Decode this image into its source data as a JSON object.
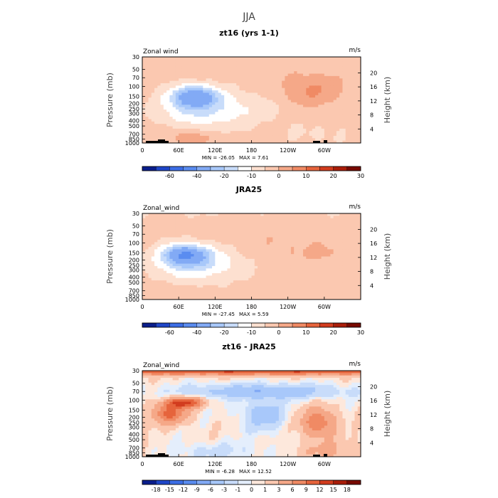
{
  "figure": {
    "title": "JJA"
  },
  "palettes": {
    "wind": [
      "#0a1e8c",
      "#1f46c8",
      "#3c6ee6",
      "#5a8cf0",
      "#82aaf5",
      "#a8c8fa",
      "#c8dcfa",
      "#ffffff",
      "#fde0d0",
      "#fbc8b0",
      "#f5a888",
      "#f08a64",
      "#e6643c",
      "#d23c1e",
      "#aa1e0a",
      "#780a00"
    ],
    "diff": [
      "#0a1e8c",
      "#1f46c8",
      "#3c6ee6",
      "#5a8cf0",
      "#82aaf5",
      "#a8c8fa",
      "#c8dcfa",
      "#e4eefc",
      "#fde8dc",
      "#fbc8b0",
      "#f5a888",
      "#f08a64",
      "#e6643c",
      "#d23c1e",
      "#aa1e0a",
      "#780a00"
    ]
  },
  "chart_data": [
    {
      "type": "heatmap",
      "title": "zt16 (yrs 1-1)",
      "variable": "Zonal wind",
      "units": "m/s",
      "ylabel": "Pressure (mb)",
      "ylabel_right": "Height (km)",
      "xlim": [
        0,
        360
      ],
      "ylim_mb": [
        1000,
        30
      ],
      "x_ticks": [
        {
          "v": 0,
          "l": "0"
        },
        {
          "v": 60,
          "l": "60E"
        },
        {
          "v": 120,
          "l": "120E"
        },
        {
          "v": 180,
          "l": "180"
        },
        {
          "v": 240,
          "l": "120W"
        },
        {
          "v": 300,
          "l": "60W"
        }
      ],
      "y_ticks": [
        30,
        50,
        70,
        100,
        150,
        200,
        250,
        300,
        400,
        500,
        700,
        850,
        1000
      ],
      "height_ticks": [
        4,
        8,
        12,
        16,
        20
      ],
      "min_label": "MIN =  -26.05",
      "max_label": "MAX =    7.61",
      "colorbar_labels": [
        "-60",
        "-40",
        "-20",
        "-10",
        "0",
        "10",
        "20",
        "30"
      ],
      "palette": "wind",
      "features": [
        {
          "x": 85,
          "p": 150,
          "sx": 28,
          "sl": 0.32,
          "a": -26
        },
        {
          "x": 90,
          "p": 300,
          "sx": 55,
          "sl": 0.5,
          "a": -10
        },
        {
          "x": 160,
          "p": 200,
          "sx": 60,
          "sl": 0.55,
          "a": -5
        },
        {
          "x": 280,
          "p": 130,
          "sx": 30,
          "sl": 0.45,
          "a": 6
        },
        {
          "x": 250,
          "p": 100,
          "sx": 60,
          "sl": 0.5,
          "a": 3
        },
        {
          "x": 85,
          "p": 800,
          "sx": 28,
          "sl": 0.2,
          "a": 6
        },
        {
          "x": 30,
          "p": 600,
          "sx": 30,
          "sl": 0.3,
          "a": 3
        },
        {
          "x": 290,
          "p": 700,
          "sx": 60,
          "sl": 0.4,
          "a": -3
        }
      ],
      "base": 2.5,
      "terrain": true
    },
    {
      "type": "heatmap",
      "title": "JRA25",
      "variable": "Zonal_wind",
      "units": "m/s",
      "ylabel": "Pressure (mb)",
      "ylabel_right": "Height (km)",
      "xlim": [
        0,
        360
      ],
      "ylim_mb": [
        1000,
        30
      ],
      "x_ticks": [
        {
          "v": 0,
          "l": "0"
        },
        {
          "v": 60,
          "l": "60E"
        },
        {
          "v": 120,
          "l": "120E"
        },
        {
          "v": 180,
          "l": "180"
        },
        {
          "v": 240,
          "l": "120W"
        },
        {
          "v": 300,
          "l": "60W"
        }
      ],
      "y_ticks": [
        30,
        50,
        70,
        100,
        150,
        200,
        250,
        300,
        400,
        500,
        700,
        850,
        1000
      ],
      "height_ticks": [
        4,
        8,
        12,
        16,
        20
      ],
      "min_label": "MIN =  -27.45",
      "max_label": "MAX =    5.59",
      "colorbar_labels": [
        "-60",
        "-40",
        "-20",
        "-10",
        "0",
        "10",
        "20",
        "30"
      ],
      "palette": "wind",
      "features": [
        {
          "x": 70,
          "p": 160,
          "sx": 26,
          "sl": 0.3,
          "a": -27
        },
        {
          "x": 80,
          "p": 250,
          "sx": 50,
          "sl": 0.5,
          "a": -10
        },
        {
          "x": 130,
          "p": 200,
          "sx": 45,
          "sl": 0.45,
          "a": -4
        },
        {
          "x": 230,
          "p": 120,
          "sx": 70,
          "sl": 0.6,
          "a": 3
        },
        {
          "x": 300,
          "p": 150,
          "sx": 20,
          "sl": 0.2,
          "a": 3
        },
        {
          "x": 40,
          "p": 700,
          "sx": 30,
          "sl": 0.3,
          "a": 2
        },
        {
          "x": 40,
          "p": 30,
          "sx": 200,
          "sl": 0.2,
          "a": -2
        }
      ],
      "base": 2,
      "terrain": false
    },
    {
      "type": "heatmap",
      "title": "zt16 - JRA25",
      "variable": "Zonal_wind",
      "units": "m/s",
      "ylabel": "Pressure (mb)",
      "ylabel_right": "Height (km)",
      "xlim": [
        0,
        360
      ],
      "ylim_mb": [
        1000,
        30
      ],
      "x_ticks": [
        {
          "v": 0,
          "l": "0"
        },
        {
          "v": 60,
          "l": "60E"
        },
        {
          "v": 120,
          "l": "120E"
        },
        {
          "v": 180,
          "l": "180"
        },
        {
          "v": 240,
          "l": "120W"
        },
        {
          "v": 300,
          "l": "60W"
        }
      ],
      "y_ticks": [
        30,
        50,
        70,
        100,
        150,
        200,
        250,
        300,
        400,
        500,
        700,
        850,
        1000
      ],
      "height_ticks": [
        4,
        8,
        12,
        16,
        20
      ],
      "min_label": "MIN =   -6.28",
      "max_label": "MAX =   12.52",
      "colorbar_labels": [
        "-18",
        "-15",
        "-12",
        "-9",
        "-6",
        "-3",
        "-1",
        "0",
        "1",
        "3",
        "6",
        "9",
        "12",
        "15",
        "18"
      ],
      "palette": "diff",
      "features": [
        {
          "x": 180,
          "p": 30,
          "sx": 400,
          "sl": 0.12,
          "a": 12
        },
        {
          "x": 70,
          "p": 110,
          "sx": 20,
          "sl": 0.15,
          "a": 12
        },
        {
          "x": 45,
          "p": 170,
          "sx": 20,
          "sl": 0.3,
          "a": 9
        },
        {
          "x": 200,
          "p": 70,
          "sx": 90,
          "sl": 0.2,
          "a": -6
        },
        {
          "x": 200,
          "p": 180,
          "sx": 25,
          "sl": 0.45,
          "a": -5
        },
        {
          "x": 290,
          "p": 250,
          "sx": 20,
          "sl": 0.4,
          "a": 8
        },
        {
          "x": 120,
          "p": 800,
          "sx": 60,
          "sl": 0.25,
          "a": -2
        },
        {
          "x": 310,
          "p": 800,
          "sx": 40,
          "sl": 0.3,
          "a": 3
        }
      ],
      "base": 0.5,
      "terrain": true
    }
  ]
}
